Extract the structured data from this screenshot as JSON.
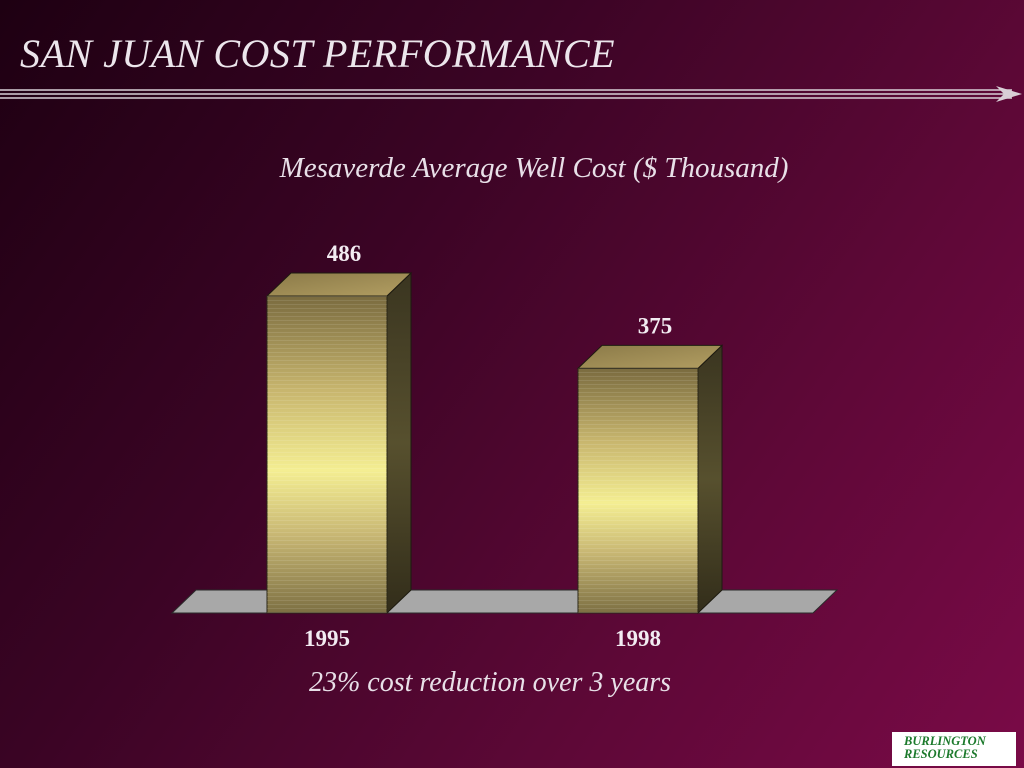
{
  "slide": {
    "title": "SAN JUAN COST PERFORMANCE",
    "caption": "23% cost reduction over 3 years"
  },
  "logo": {
    "line1": "BURLINGTON",
    "line2": "RESOURCES",
    "color": "#1c7a2c"
  },
  "chart_data": {
    "type": "bar",
    "title": "Mesaverde Average Well Cost ($ Thousand)",
    "categories": [
      "1995",
      "1998"
    ],
    "values": [
      486,
      375
    ],
    "data_labels": [
      "486",
      "375"
    ],
    "xlabel": "",
    "ylabel": "",
    "grid": false,
    "legend": "none",
    "three_d": true
  },
  "colors": {
    "background_dark": "#1e0012",
    "background_light": "#7a0a47",
    "bar_gold": "#f2ea8e",
    "bar_olive": "#7a6b3f",
    "floor": "#a8a8a8",
    "text": "#e8e0e8"
  }
}
